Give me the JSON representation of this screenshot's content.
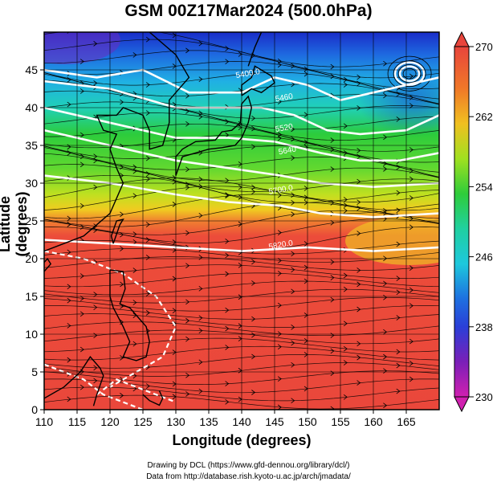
{
  "title": "GSM 00Z17Mar2024 (500.0hPa)",
  "xlabel": "Longitude (degrees)",
  "ylabel": "Latitude  (degrees)",
  "credits": [
    "Drawing by DCL (https://www.gfd-dennou.org/library/dcl/)",
    "Data from http://database.rish.kyoto-u.ac.jp/arch/jmadata/"
  ],
  "map": {
    "lon_range": [
      110,
      170
    ],
    "lat_range": [
      0,
      50
    ],
    "lon_ticks": [
      110,
      115,
      120,
      125,
      130,
      135,
      140,
      145,
      150,
      155,
      160,
      165
    ],
    "lat_ticks": [
      0,
      5,
      10,
      15,
      20,
      25,
      30,
      35,
      40,
      45
    ],
    "contour_labels": [
      "5400.0",
      "5460",
      "5520",
      "5640",
      "5700.0",
      "5820.0"
    ],
    "colorbar": {
      "min": 230,
      "max": 270,
      "tick_labels": [
        "270",
        "262",
        "254",
        "246",
        "238",
        "230"
      ]
    },
    "colors": {
      "warm": "#e8453c",
      "yellow": "#e8d81e",
      "green": "#2fcc3a",
      "cyan": "#1ec8dc",
      "blue": "#2a3fd8",
      "purple": "#7a1fb8"
    }
  }
}
